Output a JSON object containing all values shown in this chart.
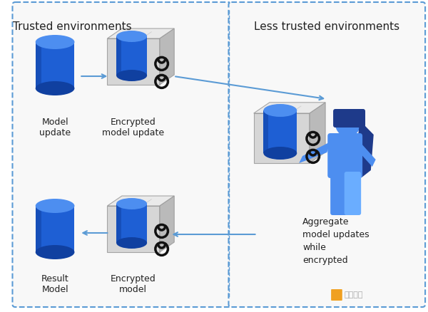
{
  "bg_color": "#ffffff",
  "border_color": "#5b9bd5",
  "left_panel_title": "Trusted environments",
  "right_panel_title": "Less trusted environments",
  "label_model_update": "Model\nupdate",
  "label_encrypted_model_update": "Encrypted\nmodel update",
  "label_result_model": "Result\nModel",
  "label_encrypted_model": "Encrypted\nmodel",
  "label_aggregate": "Aggregate\nmodel updates\nwhile\nencrypted",
  "cylinder_blue": "#1e5fd4",
  "cylinder_top": "#4d8ef0",
  "cylinder_shadow": "#1040a0",
  "box_face_color": "#c0c0c0",
  "box_edge_color": "#888888",
  "box_inner_face": "#d8d8d8",
  "lock_color": "#111111",
  "arrow_color": "#5b9bd5",
  "person_body": "#4d8ef0",
  "person_hair": "#1e3a8a",
  "watermark_color": "#f0a020",
  "watermark_text": "金色财经",
  "fig_width": 6.0,
  "fig_height": 4.39,
  "dpi": 100
}
